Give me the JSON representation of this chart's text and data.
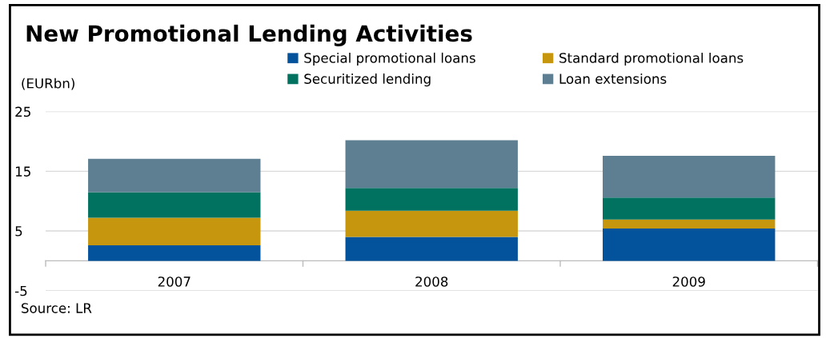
{
  "chart_data": {
    "type": "bar",
    "title": "New Promotional Lending Activities",
    "ylabel": "(EURbn)",
    "categories": [
      "2007",
      "2008",
      "2009"
    ],
    "stacked": true,
    "series": [
      {
        "name": "Special promotional loans",
        "color": "#03529c",
        "values": [
          2.6,
          4.0,
          5.4
        ]
      },
      {
        "name": "Standard promotional loans",
        "color": "#c6960f",
        "values": [
          4.6,
          4.4,
          1.5
        ]
      },
      {
        "name": "Securitized lending",
        "color": "#027260",
        "values": [
          4.3,
          3.8,
          3.7
        ]
      },
      {
        "name": "Loan extensions",
        "color": "#5e7f92",
        "values": [
          5.6,
          8.0,
          7.0
        ]
      }
    ],
    "ylim": [
      -5,
      25
    ],
    "yticks": [
      -5,
      5,
      15,
      25
    ],
    "grid": "y",
    "legend": "top",
    "annotations": [
      "Source: LR"
    ]
  }
}
